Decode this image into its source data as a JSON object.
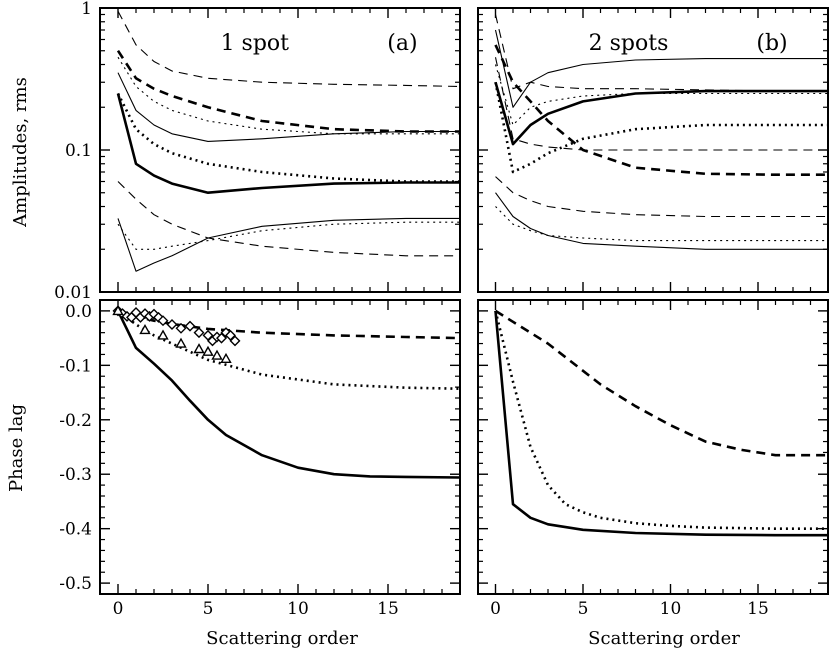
{
  "figure": {
    "ylabel_top": "Amplitudes, rms",
    "ylabel_bottom": "Phase lag",
    "xlabel_left": "Scattering order",
    "xlabel_right": "Scattering order"
  },
  "chart_data": [
    {
      "id": "a",
      "type": "line",
      "title": "1 spot",
      "panel_label": "(a)",
      "xlim": [
        -1,
        19
      ],
      "ylim": [
        0.01,
        1
      ],
      "yscale": "log",
      "xticks": [
        0,
        5,
        10,
        15
      ],
      "yticks": [
        1,
        0.1,
        0.01
      ],
      "ytick_labels": [
        "1",
        "0.1",
        "0.01"
      ],
      "series": [
        {
          "style": "dashed",
          "weight": "thin",
          "x": [
            0,
            1,
            2,
            3,
            5,
            8,
            12,
            16,
            19
          ],
          "y": [
            0.95,
            0.55,
            0.42,
            0.36,
            0.32,
            0.3,
            0.29,
            0.285,
            0.28
          ]
        },
        {
          "style": "dashed",
          "weight": "thick",
          "x": [
            0,
            1,
            2,
            3,
            5,
            8,
            12,
            16,
            19
          ],
          "y": [
            0.5,
            0.32,
            0.27,
            0.24,
            0.2,
            0.16,
            0.14,
            0.135,
            0.135
          ]
        },
        {
          "style": "dotted",
          "weight": "thin",
          "x": [
            0,
            1,
            2,
            3,
            5,
            8,
            12,
            16,
            19
          ],
          "y": [
            0.45,
            0.28,
            0.22,
            0.19,
            0.16,
            0.14,
            0.13,
            0.13,
            0.13
          ]
        },
        {
          "style": "solid",
          "weight": "thin",
          "x": [
            0,
            1,
            2,
            3,
            5,
            8,
            12,
            16,
            19
          ],
          "y": [
            0.35,
            0.19,
            0.15,
            0.13,
            0.115,
            0.12,
            0.13,
            0.135,
            0.135
          ]
        },
        {
          "style": "dotted",
          "weight": "thick",
          "x": [
            0,
            1,
            2,
            3,
            5,
            8,
            12,
            16,
            19
          ],
          "y": [
            0.25,
            0.14,
            0.11,
            0.095,
            0.08,
            0.07,
            0.063,
            0.06,
            0.06
          ]
        },
        {
          "style": "solid",
          "weight": "thick",
          "x": [
            0,
            1,
            2,
            3,
            5,
            8,
            12,
            16,
            19
          ],
          "y": [
            0.25,
            0.08,
            0.066,
            0.058,
            0.05,
            0.054,
            0.058,
            0.059,
            0.059
          ]
        },
        {
          "style": "dashed",
          "weight": "thin",
          "x": [
            0,
            1,
            2,
            3,
            5,
            8,
            12,
            16,
            19
          ],
          "y": [
            0.06,
            0.045,
            0.035,
            0.03,
            0.024,
            0.021,
            0.019,
            0.018,
            0.018
          ]
        },
        {
          "style": "dotted",
          "weight": "thin",
          "x": [
            0,
            1,
            2,
            3,
            5,
            8,
            12,
            16,
            19
          ],
          "y": [
            0.03,
            0.02,
            0.02,
            0.021,
            0.023,
            0.027,
            0.03,
            0.031,
            0.031
          ]
        },
        {
          "style": "solid",
          "weight": "thin",
          "x": [
            0,
            1,
            2,
            3,
            5,
            8,
            12,
            16,
            19
          ],
          "y": [
            0.033,
            0.014,
            0.016,
            0.018,
            0.024,
            0.029,
            0.032,
            0.033,
            0.033
          ]
        }
      ]
    },
    {
      "id": "b",
      "type": "line",
      "title": "2 spots",
      "panel_label": "(b)",
      "xlim": [
        -1,
        19
      ],
      "ylim": [
        0.01,
        1
      ],
      "yscale": "log",
      "xticks": [
        0,
        5,
        10,
        15
      ],
      "yticks": [
        1,
        0.1,
        0.01
      ],
      "ytick_labels": [
        "",
        "",
        ""
      ],
      "series": [
        {
          "style": "solid",
          "weight": "thin",
          "x": [
            0,
            1,
            2,
            3,
            5,
            8,
            12,
            16,
            19
          ],
          "y": [
            0.7,
            0.2,
            0.3,
            0.35,
            0.4,
            0.43,
            0.44,
            0.44,
            0.44
          ]
        },
        {
          "style": "dashed",
          "weight": "thin",
          "x": [
            0,
            1,
            2,
            3,
            5,
            8,
            12,
            16,
            19
          ],
          "y": [
            0.9,
            0.27,
            0.3,
            0.28,
            0.27,
            0.27,
            0.265,
            0.26,
            0.26
          ]
        },
        {
          "style": "solid",
          "weight": "thick",
          "x": [
            0,
            1,
            2,
            3,
            5,
            8,
            12,
            16,
            19
          ],
          "y": [
            0.3,
            0.11,
            0.15,
            0.18,
            0.22,
            0.25,
            0.26,
            0.26,
            0.26
          ]
        },
        {
          "style": "dotted",
          "weight": "thin",
          "x": [
            0,
            1,
            2,
            3,
            5,
            8,
            12,
            16,
            19
          ],
          "y": [
            0.4,
            0.15,
            0.2,
            0.22,
            0.24,
            0.25,
            0.25,
            0.25,
            0.25
          ]
        },
        {
          "style": "dashed",
          "weight": "thick",
          "x": [
            0,
            1,
            2,
            3,
            5,
            8,
            12,
            16,
            19
          ],
          "y": [
            0.55,
            0.3,
            0.22,
            0.16,
            0.1,
            0.075,
            0.068,
            0.067,
            0.067
          ]
        },
        {
          "style": "dotted",
          "weight": "thick",
          "x": [
            0,
            1,
            2,
            3,
            5,
            8,
            12,
            16,
            19
          ],
          "y": [
            0.3,
            0.07,
            0.08,
            0.095,
            0.12,
            0.14,
            0.15,
            0.15,
            0.15
          ]
        },
        {
          "style": "dashed",
          "weight": "thin",
          "x": [
            0,
            1,
            2,
            3,
            5,
            8,
            12,
            16,
            19
          ],
          "y": [
            0.45,
            0.12,
            0.11,
            0.105,
            0.1,
            0.1,
            0.1,
            0.1,
            0.1
          ]
        },
        {
          "style": "dashed",
          "weight": "thin",
          "x": [
            0,
            1,
            2,
            3,
            5,
            8,
            12,
            16,
            19
          ],
          "y": [
            0.065,
            0.05,
            0.044,
            0.04,
            0.037,
            0.035,
            0.034,
            0.034,
            0.034
          ]
        },
        {
          "style": "dotted",
          "weight": "thin",
          "x": [
            0,
            1,
            2,
            3,
            5,
            8,
            12,
            16,
            19
          ],
          "y": [
            0.04,
            0.03,
            0.027,
            0.025,
            0.024,
            0.023,
            0.023,
            0.023,
            0.023
          ]
        },
        {
          "style": "solid",
          "weight": "thin",
          "x": [
            0,
            1,
            2,
            3,
            5,
            8,
            12,
            16,
            19
          ],
          "y": [
            0.05,
            0.034,
            0.028,
            0.025,
            0.022,
            0.021,
            0.02,
            0.02,
            0.02
          ]
        }
      ]
    },
    {
      "id": "c",
      "type": "line",
      "xlabel": "Scattering order",
      "xlim": [
        -1,
        19
      ],
      "ylim": [
        -0.52,
        0.02
      ],
      "xticks": [
        0,
        5,
        10,
        15
      ],
      "yticks": [
        0.0,
        -0.1,
        -0.2,
        -0.3,
        -0.4,
        -0.5
      ],
      "ytick_labels": [
        "0.0",
        "-0.1",
        "-0.2",
        "-0.3",
        "-0.4",
        "-0.5"
      ],
      "series": [
        {
          "style": "dashed",
          "weight": "thick",
          "x": [
            0,
            1,
            2,
            3,
            5,
            8,
            12,
            16,
            19
          ],
          "y": [
            0.0,
            -0.01,
            -0.018,
            -0.024,
            -0.033,
            -0.04,
            -0.045,
            -0.048,
            -0.05
          ]
        },
        {
          "style": "dotted",
          "weight": "thick",
          "x": [
            0,
            1,
            2,
            3,
            5,
            8,
            12,
            16,
            19
          ],
          "y": [
            0.0,
            -0.025,
            -0.045,
            -0.06,
            -0.09,
            -0.117,
            -0.135,
            -0.141,
            -0.143
          ]
        },
        {
          "style": "solid",
          "weight": "thick",
          "x": [
            0,
            1,
            2,
            3,
            4,
            5,
            6,
            8,
            10,
            12,
            14,
            16,
            19
          ],
          "y": [
            0.0,
            -0.068,
            -0.097,
            -0.128,
            -0.165,
            -0.2,
            -0.228,
            -0.265,
            -0.288,
            -0.3,
            -0.304,
            -0.305,
            -0.306
          ]
        }
      ],
      "markers": [
        {
          "shape": "diamond",
          "x": [
            0,
            0.25,
            0.5,
            0.75,
            1,
            1.25,
            1.5,
            1.75,
            2,
            2.25,
            2.5,
            3,
            3.5,
            4,
            4.5,
            5,
            5.25,
            5.5,
            5.75,
            6,
            6.25,
            6.5
          ],
          "y": [
            0.0,
            -0.005,
            -0.01,
            -0.012,
            -0.003,
            -0.012,
            -0.005,
            -0.01,
            -0.006,
            -0.012,
            -0.018,
            -0.025,
            -0.032,
            -0.028,
            -0.04,
            -0.045,
            -0.055,
            -0.048,
            -0.05,
            -0.04,
            -0.045,
            -0.055
          ]
        },
        {
          "shape": "triangle",
          "x": [
            0,
            1.5,
            2.5,
            3.5,
            4.5,
            5,
            5.5,
            6
          ],
          "y": [
            0.0,
            -0.035,
            -0.045,
            -0.06,
            -0.07,
            -0.075,
            -0.082,
            -0.088
          ]
        }
      ]
    },
    {
      "id": "d",
      "type": "line",
      "xlabel": "Scattering order",
      "xlim": [
        -1,
        19
      ],
      "ylim": [
        -0.52,
        0.02
      ],
      "xticks": [
        0,
        5,
        10,
        15
      ],
      "yticks": [
        0.0,
        -0.1,
        -0.2,
        -0.3,
        -0.4,
        -0.5
      ],
      "ytick_labels": [
        "",
        "",
        "",
        "",
        "",
        ""
      ],
      "series": [
        {
          "style": "dashed",
          "weight": "thick",
          "x": [
            0,
            1,
            2,
            3,
            4,
            5,
            6,
            8,
            10,
            12,
            14,
            16,
            18,
            19
          ],
          "y": [
            0.0,
            -0.02,
            -0.04,
            -0.06,
            -0.085,
            -0.11,
            -0.135,
            -0.175,
            -0.21,
            -0.24,
            -0.255,
            -0.265,
            -0.265,
            -0.265
          ]
        },
        {
          "style": "dotted",
          "weight": "thick",
          "x": [
            0,
            1,
            2,
            3,
            4,
            5,
            6,
            8,
            10,
            12,
            14,
            16,
            19
          ],
          "y": [
            0.0,
            -0.13,
            -0.25,
            -0.32,
            -0.355,
            -0.37,
            -0.38,
            -0.39,
            -0.395,
            -0.398,
            -0.399,
            -0.4,
            -0.4
          ]
        },
        {
          "style": "solid",
          "weight": "thick",
          "x": [
            0,
            1,
            2,
            3,
            5,
            8,
            12,
            16,
            19
          ],
          "y": [
            0.0,
            -0.355,
            -0.38,
            -0.392,
            -0.402,
            -0.408,
            -0.411,
            -0.412,
            -0.412
          ]
        }
      ]
    }
  ]
}
